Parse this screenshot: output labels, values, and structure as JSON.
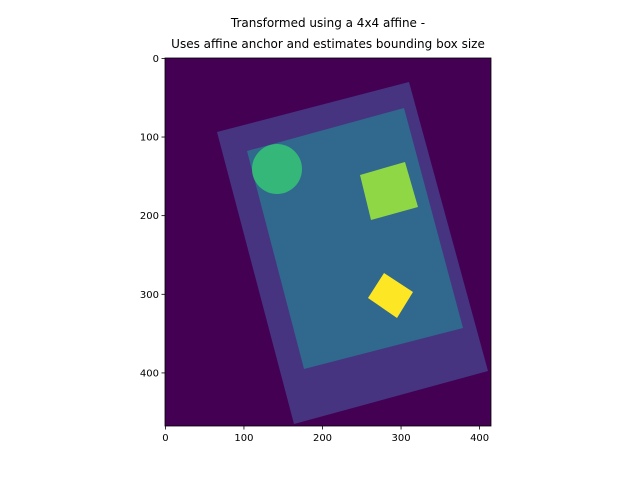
{
  "chart_data": {
    "type": "image",
    "title": [
      "Transformed using a 4x4 affine -",
      "Uses affine anchor and estimates bounding box size"
    ],
    "xlim": [
      -0.5,
      414.5
    ],
    "ylim": [
      467.5,
      -0.5
    ],
    "xticks": [
      0,
      100,
      200,
      300,
      400
    ],
    "yticks": [
      0,
      100,
      200,
      300,
      400
    ]
  }
}
